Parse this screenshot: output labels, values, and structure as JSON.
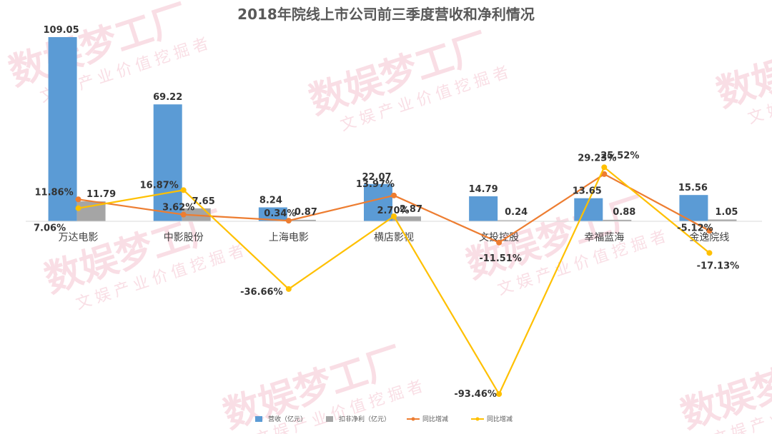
{
  "chart_data": {
    "type": "bar",
    "title": "2018年院线上市公司前三季度营收和净利情况",
    "categories": [
      "万达电影",
      "中影股份",
      "上海电影",
      "横店影视",
      "文投控股",
      "幸福蓝海",
      "金逸院线"
    ],
    "series": [
      {
        "name": "营收（亿元）",
        "kind": "bar",
        "color": "#5b9bd5",
        "values": [
          109.05,
          69.22,
          8.24,
          22.07,
          14.79,
          13.65,
          15.56
        ],
        "labels": [
          "109.05",
          "69.22",
          "8.24",
          "22.07",
          "14.79",
          "13.65",
          "15.56"
        ]
      },
      {
        "name": "扣非净利（亿元）",
        "kind": "bar",
        "color": "#a5a5a5",
        "values": [
          11.79,
          7.65,
          0.87,
          2.87,
          0.24,
          0.88,
          1.05
        ],
        "labels": [
          "11.79",
          "7.65",
          "0.87",
          "2.87",
          "0.24",
          "0.88",
          "1.05"
        ]
      },
      {
        "name": "同比增减",
        "kind": "line",
        "color": "#ed7d31",
        "values": [
          11.86,
          3.62,
          0.34,
          13.97,
          -11.51,
          25.52,
          -5.12
        ],
        "labels": [
          "11.86%",
          "3.62%",
          "0.34%",
          "13.97%",
          "-11.51%",
          "25.52%",
          "-5.12%"
        ]
      },
      {
        "name": "同比增减",
        "kind": "line",
        "color": "#ffc000",
        "values": [
          7.06,
          16.87,
          -36.66,
          2.7,
          -93.46,
          29.23,
          -17.13
        ],
        "labels": [
          "7.06%",
          "16.87%",
          "-36.66%",
          "2.70%",
          "-93.46%",
          "29.23%",
          "-17.13%"
        ]
      }
    ],
    "ylim_bars": [
      0,
      120
    ],
    "ylim_lines": [
      -100,
      40
    ],
    "legend_position": "bottom",
    "grid": false
  },
  "watermark": {
    "brand": "数娱梦工厂",
    "sub": "文娱产业价值挖掘者"
  }
}
